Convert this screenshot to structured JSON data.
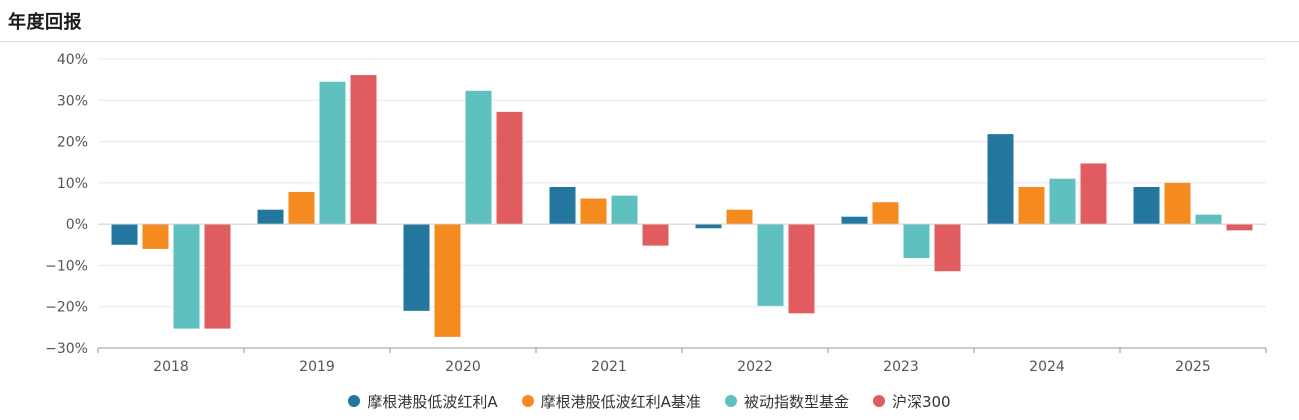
{
  "page": {
    "title": "年度回报"
  },
  "colors": {
    "grid": "#e8e8e8",
    "axis": "#999999",
    "tick_text": "#555555"
  },
  "chart_data": {
    "type": "bar",
    "title": "",
    "xlabel": "",
    "ylabel": "",
    "categories": [
      "2018",
      "2019",
      "2020",
      "2021",
      "2022",
      "2023",
      "2024",
      "2025"
    ],
    "ylim": [
      -30,
      40
    ],
    "yticks": [
      40,
      30,
      20,
      10,
      0,
      -10,
      -20,
      -30
    ],
    "ytick_labels": [
      "40%",
      "30%",
      "20%",
      "10%",
      "0%",
      "−10%",
      "−20%",
      "−30%"
    ],
    "grid": true,
    "legend_position": "bottom",
    "series": [
      {
        "name": "摩根港股低波红利A",
        "color": "#23779f",
        "values": [
          -5.0,
          3.5,
          -21.0,
          9.0,
          -1.0,
          1.8,
          21.8,
          9.0
        ]
      },
      {
        "name": "摩根港股低波红利A基准",
        "color": "#f58a1f",
        "values": [
          -6.0,
          7.8,
          -27.3,
          6.2,
          3.5,
          5.3,
          9.0,
          10.0
        ]
      },
      {
        "name": "被动指数型基金",
        "color": "#5fc0c0",
        "values": [
          -25.3,
          34.5,
          32.3,
          6.9,
          -19.8,
          -8.2,
          11.0,
          2.3
        ]
      },
      {
        "name": "沪深300",
        "color": "#e05c5f",
        "values": [
          -25.3,
          36.1,
          27.2,
          -5.2,
          -21.6,
          -11.4,
          14.7,
          -1.5
        ]
      }
    ]
  }
}
